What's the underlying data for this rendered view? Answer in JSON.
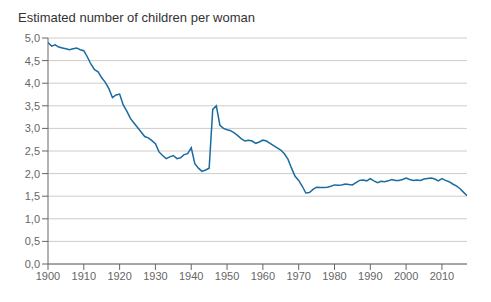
{
  "chart_data": {
    "type": "line",
    "title": "Estimated number of children per woman",
    "color": "#1a6ba0",
    "grid": true,
    "xlim": [
      1900,
      2017
    ],
    "ylim": [
      0.0,
      5.0
    ],
    "xticks": [
      1900,
      1910,
      1920,
      1930,
      1940,
      1950,
      1960,
      1970,
      1980,
      1990,
      2000,
      2010
    ],
    "yticks": [
      {
        "value": 0.0,
        "label": "0,0"
      },
      {
        "value": 0.5,
        "label": "0,5"
      },
      {
        "value": 1.0,
        "label": "1,0"
      },
      {
        "value": 1.5,
        "label": "1,5"
      },
      {
        "value": 2.0,
        "label": "2,0"
      },
      {
        "value": 2.5,
        "label": "2,5"
      },
      {
        "value": 3.0,
        "label": "3,0"
      },
      {
        "value": 3.5,
        "label": "3,5"
      },
      {
        "value": 4.0,
        "label": "4,0"
      },
      {
        "value": 4.5,
        "label": "4,5"
      },
      {
        "value": 5.0,
        "label": "5,0"
      }
    ],
    "x": [
      1900,
      1901,
      1902,
      1903,
      1904,
      1905,
      1906,
      1907,
      1908,
      1909,
      1910,
      1911,
      1912,
      1913,
      1914,
      1915,
      1916,
      1917,
      1918,
      1919,
      1920,
      1921,
      1922,
      1923,
      1924,
      1925,
      1926,
      1927,
      1928,
      1929,
      1930,
      1931,
      1932,
      1933,
      1934,
      1935,
      1936,
      1937,
      1938,
      1939,
      1940,
      1941,
      1942,
      1943,
      1944,
      1945,
      1946,
      1947,
      1948,
      1949,
      1950,
      1951,
      1952,
      1953,
      1954,
      1955,
      1956,
      1957,
      1958,
      1959,
      1960,
      1961,
      1962,
      1963,
      1964,
      1965,
      1966,
      1967,
      1968,
      1969,
      1970,
      1971,
      1972,
      1973,
      1974,
      1975,
      1976,
      1977,
      1978,
      1979,
      1980,
      1981,
      1982,
      1983,
      1984,
      1985,
      1986,
      1987,
      1988,
      1989,
      1990,
      1991,
      1992,
      1993,
      1994,
      1995,
      1996,
      1997,
      1998,
      1999,
      2000,
      2001,
      2002,
      2003,
      2004,
      2005,
      2006,
      2007,
      2008,
      2009,
      2010,
      2011,
      2012,
      2013,
      2014,
      2015,
      2016,
      2017
    ],
    "values": [
      4.9,
      4.82,
      4.85,
      4.8,
      4.78,
      4.76,
      4.74,
      4.76,
      4.78,
      4.74,
      4.72,
      4.58,
      4.42,
      4.3,
      4.25,
      4.12,
      4.02,
      3.88,
      3.68,
      3.74,
      3.76,
      3.52,
      3.38,
      3.22,
      3.12,
      3.02,
      2.92,
      2.82,
      2.79,
      2.73,
      2.66,
      2.48,
      2.4,
      2.33,
      2.37,
      2.4,
      2.33,
      2.35,
      2.42,
      2.44,
      2.57,
      2.22,
      2.12,
      2.05,
      2.08,
      2.12,
      3.42,
      3.5,
      3.07,
      3.0,
      2.97,
      2.95,
      2.9,
      2.84,
      2.77,
      2.72,
      2.74,
      2.72,
      2.67,
      2.7,
      2.74,
      2.72,
      2.67,
      2.62,
      2.57,
      2.52,
      2.44,
      2.32,
      2.12,
      1.94,
      1.85,
      1.72,
      1.57,
      1.58,
      1.65,
      1.7,
      1.69,
      1.69,
      1.7,
      1.72,
      1.75,
      1.74,
      1.75,
      1.77,
      1.76,
      1.75,
      1.8,
      1.85,
      1.86,
      1.84,
      1.89,
      1.84,
      1.8,
      1.83,
      1.82,
      1.84,
      1.87,
      1.85,
      1.85,
      1.87,
      1.9,
      1.87,
      1.85,
      1.86,
      1.85,
      1.88,
      1.89,
      1.9,
      1.88,
      1.84,
      1.89,
      1.85,
      1.82,
      1.77,
      1.73,
      1.67,
      1.59,
      1.51
    ]
  }
}
